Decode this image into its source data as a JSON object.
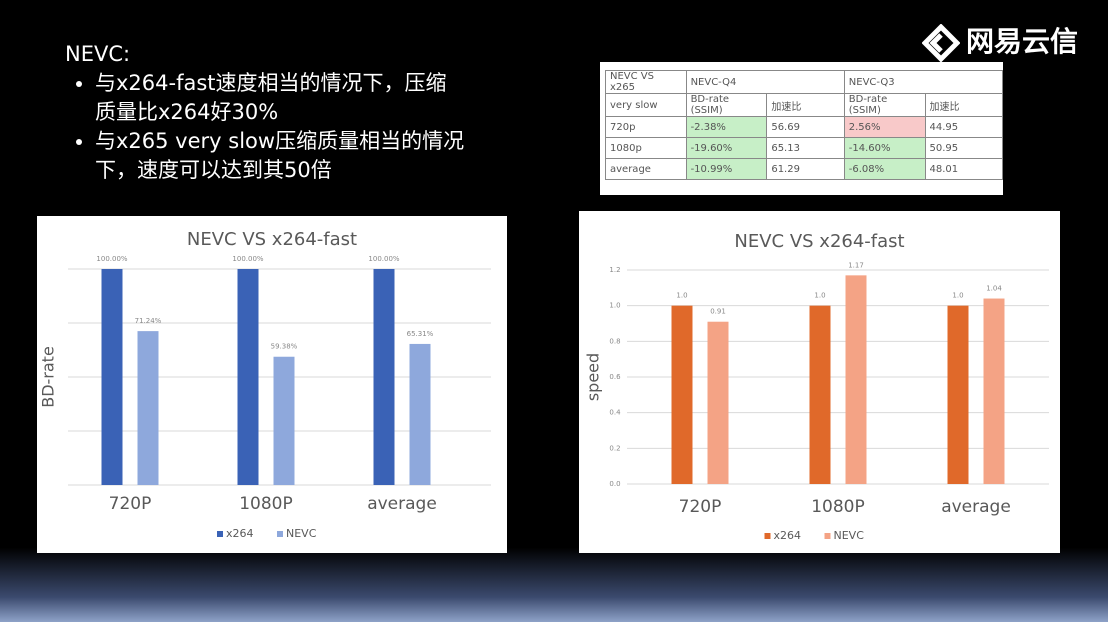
{
  "logo": "网易云信",
  "heading": "NEVC:",
  "bullets": [
    "与x264-fast速度相当的情况下，压缩质量比x264好30%",
    "与x265 very slow压缩质量相当的情况下，速度可以达到其50倍"
  ],
  "table": {
    "header": [
      "NEVC VS x265",
      "NEVC-Q4",
      "NEVC-Q3"
    ],
    "subheader": [
      "very slow",
      "BD-rate (SSIM)",
      "加速比",
      "BD-rate (SSIM)",
      "加速比"
    ],
    "rows": [
      [
        "720p",
        "-2.38%",
        "56.69",
        "2.56%",
        "44.95"
      ],
      [
        "1080p",
        "-19.60%",
        "65.13",
        "-14.60%",
        "50.95"
      ],
      [
        "average",
        "-10.99%",
        "61.29",
        "-6.08%",
        "48.01"
      ]
    ]
  },
  "chart_data": [
    {
      "type": "bar",
      "title": "NEVC VS x264-fast",
      "y_label": "BD-rate",
      "categories": [
        "720P",
        "1080P",
        "average"
      ],
      "series": [
        {
          "name": "x264",
          "color": "#3a62b6",
          "values": [
            100,
            100,
            100
          ],
          "value_labels": [
            "100.00%",
            "100.00%",
            "100.00%"
          ]
        },
        {
          "name": "NEVC",
          "color": "#8ea8dc",
          "values": [
            71.24,
            59.38,
            65.31
          ],
          "value_labels": [
            "71.24%",
            "59.38%",
            "65.31%"
          ]
        }
      ],
      "ylim": [
        0,
        100
      ],
      "yticks": [
        0,
        25,
        50,
        75,
        100
      ],
      "tick_labels": false,
      "grid": true
    },
    {
      "type": "bar",
      "title": "NEVC VS x264-fast",
      "y_label": "speed",
      "categories": [
        "720P",
        "1080P",
        "average"
      ],
      "series": [
        {
          "name": "x264",
          "color": "#e0692a",
          "values": [
            1,
            1,
            1
          ],
          "value_labels": [
            "1.0",
            "1.0",
            "1.0"
          ]
        },
        {
          "name": "NEVC",
          "color": "#f4a385",
          "values": [
            0.91,
            1.17,
            1.04
          ]
        }
      ],
      "ylim": [
        0,
        1.2
      ],
      "yticks": [
        {
          "value": 0,
          "label": "0.0"
        },
        {
          "value": 0.2,
          "label": "0.2"
        },
        {
          "value": 0.4,
          "label": "0.4"
        },
        {
          "value": 0.6,
          "label": "0.6"
        },
        {
          "value": 0.8,
          "label": "0.8"
        },
        {
          "value": 1,
          "label": "1.0"
        },
        {
          "value": 1.2,
          "label": "1.2"
        }
      ],
      "tick_labels": true,
      "grid": true
    }
  ]
}
